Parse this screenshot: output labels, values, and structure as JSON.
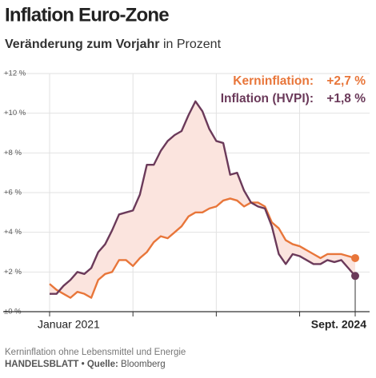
{
  "chart_data": {
    "type": "line",
    "title": "Inflation Euro-Zone",
    "subtitle": "Veränderung zum Vorjahr",
    "subtitle_unit": "in Prozent",
    "note": "Kerninflation ohne Lebensmittel und Energie",
    "source_brand": "HANDELSBLATT •",
    "source_label": "Quelle:",
    "source": "Bloomberg",
    "categories": [
      "Januar 2021",
      null,
      null,
      null,
      null,
      null,
      null,
      null,
      null,
      null,
      null,
      null,
      null,
      null,
      null,
      null,
      null,
      null,
      null,
      null,
      null,
      null,
      null,
      null,
      null,
      null,
      null,
      null,
      null,
      null,
      null,
      null,
      null,
      null,
      null,
      null,
      null,
      null,
      null,
      null,
      null,
      null,
      null,
      null,
      "Sept. 2024"
    ],
    "series": [
      {
        "name": "Kerninflation:",
        "color": "#e8763a",
        "value_label": "+2,7 %",
        "values": [
          1.4,
          1.1,
          0.9,
          0.7,
          1.0,
          0.9,
          0.7,
          1.6,
          1.9,
          2.0,
          2.6,
          2.6,
          2.3,
          2.7,
          3.0,
          3.5,
          3.8,
          3.7,
          4.0,
          4.3,
          4.8,
          5.0,
          5.0,
          5.2,
          5.3,
          5.6,
          5.7,
          5.6,
          5.3,
          5.5,
          5.5,
          5.3,
          4.5,
          4.2,
          3.6,
          3.4,
          3.3,
          3.1,
          2.9,
          2.7,
          2.9,
          2.9,
          2.9,
          2.8,
          2.7
        ]
      },
      {
        "name": "Inflation (HVPI):",
        "color": "#6b3a5a",
        "value_label": "+1,8 %",
        "values": [
          0.9,
          0.9,
          1.3,
          1.6,
          2.0,
          1.9,
          2.2,
          3.0,
          3.4,
          4.1,
          4.9,
          5.0,
          5.1,
          5.9,
          7.4,
          7.4,
          8.1,
          8.6,
          8.9,
          9.1,
          9.9,
          10.6,
          10.1,
          9.2,
          8.6,
          8.5,
          6.9,
          7.0,
          6.1,
          5.5,
          5.3,
          5.2,
          4.3,
          2.9,
          2.4,
          2.9,
          2.8,
          2.6,
          2.4,
          2.4,
          2.6,
          2.5,
          2.6,
          2.2,
          1.8
        ]
      }
    ],
    "band_color": "#fbe4de",
    "ylim": [
      0,
      12
    ],
    "yticks": [
      {
        "value": 0,
        "label": "±0 %"
      },
      {
        "value": 2,
        "label": "+2 %"
      },
      {
        "value": 4,
        "label": "+4 %"
      },
      {
        "value": 6,
        "label": "+6 %"
      },
      {
        "value": 8,
        "label": "+8 %"
      },
      {
        "value": 10,
        "label": "+10 %"
      },
      {
        "value": 12,
        "label": "+12 %"
      }
    ],
    "grid": true
  }
}
